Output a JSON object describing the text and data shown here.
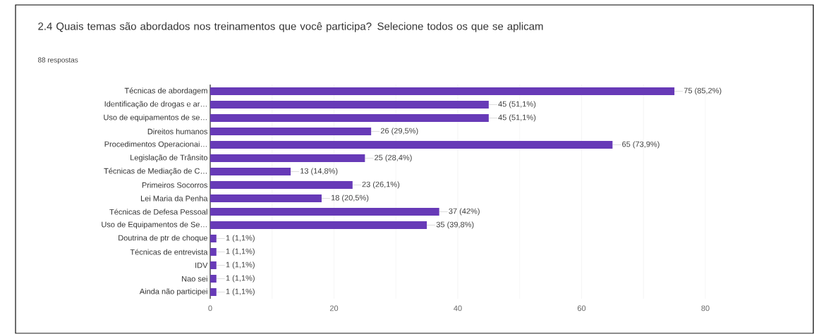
{
  "chart_data": {
    "type": "bar",
    "orientation": "horizontal",
    "title": "2.4  Quais temas são abordados nos treinamentos que você participa?  Selecione todos os que se aplicam",
    "subtitle": "88 respostas",
    "categories": [
      "Técnicas de abordagem",
      "Identificação de drogas e ar…",
      "Uso de equipamentos de se…",
      "Direitos humanos",
      "Procedimentos Operacionai…",
      "Legislação de Trânsito",
      "Técnicas de Mediação de C…",
      "Primeiros Socorros",
      "Lei Maria da Penha",
      "Técnicas de Defesa Pessoal",
      "Uso de Equipamentos de Se…",
      "Doutrina de ptr de choque",
      "Técnicas de entrevista",
      "IDV",
      "Nao sei",
      "Ainda não participei"
    ],
    "values": [
      75,
      45,
      45,
      26,
      65,
      25,
      13,
      23,
      18,
      37,
      35,
      1,
      1,
      1,
      1,
      1
    ],
    "value_labels": [
      "75 (85,2%)",
      "45 (51,1%)",
      "45 (51,1%)",
      "26 (29,5%)",
      "65 (73,9%)",
      "25 (28,4%)",
      "13 (14,8%)",
      "23 (26,1%)",
      "18 (20,5%)",
      "37 (42%)",
      "35 (39,8%)",
      "1 (1,1%)",
      "1 (1,1%)",
      "1 (1,1%)",
      "1 (1,1%)",
      "1 (1,1%)"
    ],
    "color": "#673ab7",
    "xlim": [
      0,
      80
    ],
    "xticks": [
      0,
      {
        "value": 10,
        "label": null
      },
      20,
      {
        "value": 30,
        "label": null
      },
      40,
      {
        "value": 50,
        "label": null
      },
      60,
      {
        "value": 70,
        "label": null
      },
      80
    ],
    "grid": "x"
  }
}
